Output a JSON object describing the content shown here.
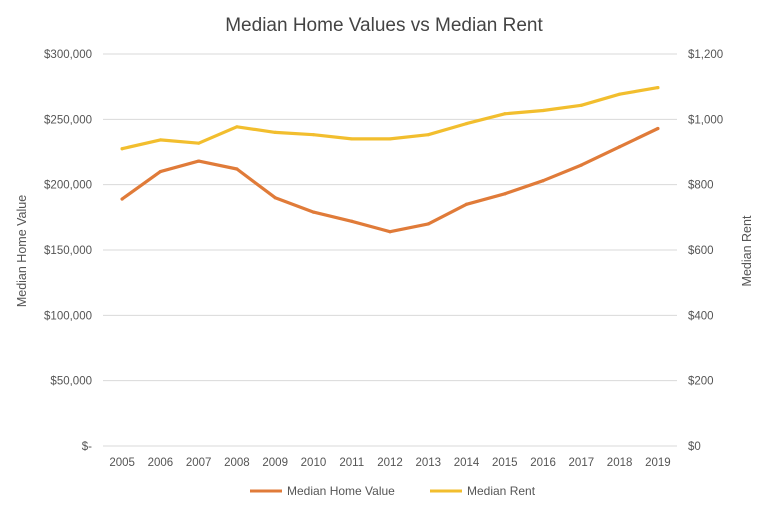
{
  "chart_data": {
    "type": "line",
    "title": "Median Home Values vs Median Rent",
    "x": [
      "2005",
      "2006",
      "2007",
      "2008",
      "2009",
      "2010",
      "2011",
      "2012",
      "2013",
      "2014",
      "2015",
      "2016",
      "2017",
      "2018",
      "2019"
    ],
    "xlabel": "",
    "y_left": {
      "label": "Median Home Value",
      "lim": [
        0,
        300000
      ],
      "ticks": [
        0,
        50000,
        100000,
        150000,
        200000,
        250000,
        300000
      ],
      "tick_labels": [
        "$-",
        "$50,000",
        "$100,000",
        "$150,000",
        "$200,000",
        "$250,000",
        "$300,000"
      ]
    },
    "y_right": {
      "label": "Median Rent",
      "lim": [
        0,
        1200
      ],
      "ticks": [
        0,
        200,
        400,
        600,
        800,
        1000,
        1200
      ],
      "tick_labels": [
        "$0",
        "$200",
        "$400",
        "$600",
        "$800",
        "$1,000",
        "$1,200"
      ]
    },
    "series": [
      {
        "name": "Median Home Value",
        "axis": "left",
        "color": "#E07B39",
        "values": [
          189000,
          210000,
          218000,
          212000,
          190000,
          179000,
          172000,
          164000,
          170000,
          185000,
          193000,
          203000,
          215000,
          229000,
          243000
        ]
      },
      {
        "name": "Median Rent",
        "axis": "right",
        "color": "#F2BE2E",
        "values": [
          910,
          937,
          927,
          977,
          960,
          953,
          940,
          940,
          953,
          987,
          1017,
          1027,
          1043,
          1077,
          1097
        ]
      }
    ],
    "grid": true,
    "legend": "bottom"
  }
}
